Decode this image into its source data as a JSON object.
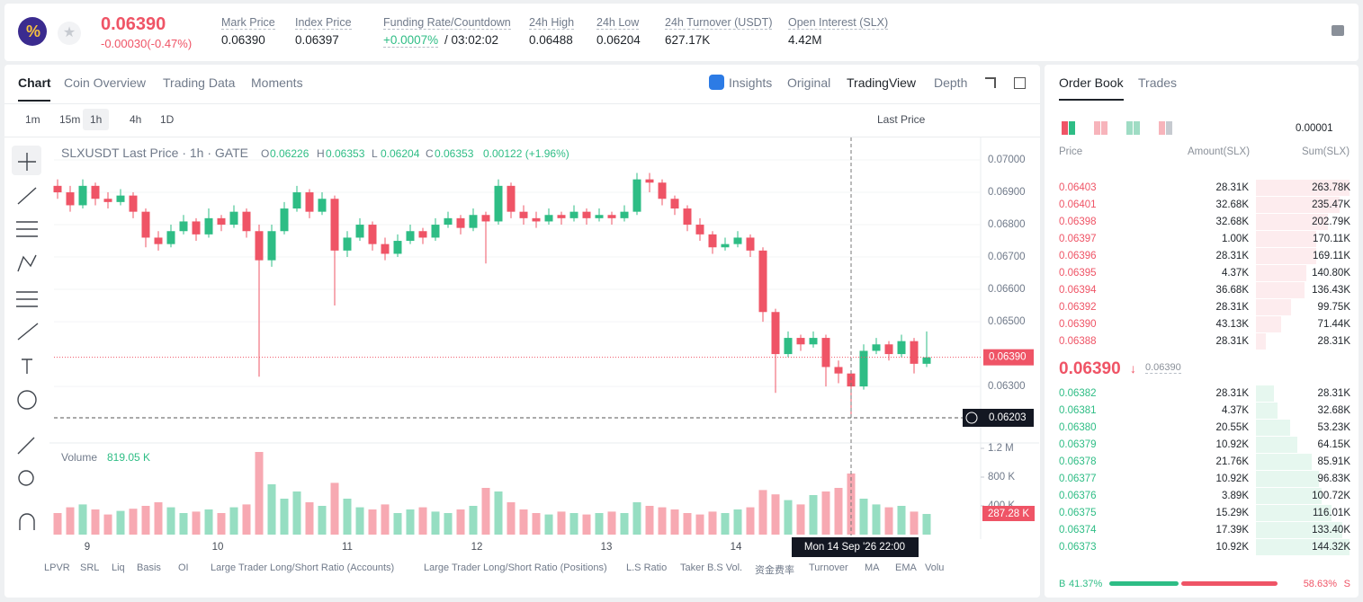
{
  "header": {
    "price": "0.06390",
    "change": "-0.00030(-0.47%)",
    "stats": [
      {
        "label": "Mark Price",
        "value": "0.06390"
      },
      {
        "label": "Index Price",
        "value": "0.06397"
      },
      {
        "label": "Funding Rate/Countdown",
        "value": "+0.0007%",
        "extra": "/ 03:02:02"
      },
      {
        "label": "24h High",
        "value": "0.06488"
      },
      {
        "label": "24h Low",
        "value": "0.06204"
      },
      {
        "label": "24h Turnover (USDT)",
        "value": "627.17K"
      },
      {
        "label": "Open Interest (SLX)",
        "value": "4.42M"
      }
    ]
  },
  "tabs": [
    "Chart",
    "Coin Overview",
    "Trading Data",
    "Moments"
  ],
  "views": [
    "Insights",
    "Original",
    "TradingView",
    "Depth"
  ],
  "intervals": [
    "1m",
    "15m",
    "1h",
    "4h",
    "1D"
  ],
  "price_source": "Last Price",
  "legend": {
    "symbol": "SLXUSDT Last Price · 1h · GATE",
    "o_label": "O",
    "o": "0.06226",
    "h_label": "H",
    "h": "0.06353",
    "l_label": "L",
    "l": "0.06204",
    "c_label": "C",
    "c": "0.06353",
    "change": "0.00122 (+1.96%)",
    "volume_label": "Volume",
    "volume": "819.05 K"
  },
  "indicators": [
    "LPVR",
    "SRL",
    "Liq",
    "Basis",
    "OI",
    "Large Trader Long/Short Ratio (Accounts)",
    "Large Trader Long/Short Ratio (Positions)",
    "L.S Ratio",
    "Taker B.S Vol.",
    "资金费率",
    "Turnover",
    "MA",
    "EMA",
    "Volu"
  ],
  "chart_data": {
    "type": "candlestick",
    "up_color": "#2ebd85",
    "down_color": "#ef5466",
    "x_labels": [
      "9",
      "10",
      "11",
      "12",
      "13",
      "14"
    ],
    "crosshair": {
      "time": "Mon 14 Sep '26  22:00",
      "value": 0.06203,
      "label": "0.06203"
    },
    "last": {
      "value": 0.0639,
      "label": "0.06390"
    },
    "ylim": [
      0.06128,
      0.07064
    ],
    "yticks": [
      {
        "value": 0.07,
        "label": "0.07000"
      },
      {
        "value": 0.069,
        "label": "0.06900"
      },
      {
        "value": 0.068,
        "label": "0.06800"
      },
      {
        "value": 0.067,
        "label": "0.06700"
      },
      {
        "value": 0.066,
        "label": "0.06600"
      },
      {
        "value": 0.065,
        "label": "0.06500"
      },
      {
        "value": 0.063,
        "label": "0.06300"
      }
    ],
    "volume_lim": [
      0,
      1237500
    ],
    "volume_ticks": [
      {
        "value": 1200000,
        "label": "1.2 M"
      },
      {
        "value": 800000,
        "label": "800 K"
      },
      {
        "value": 400000,
        "label": "400 K"
      }
    ],
    "volume_last_label": "287.28 K",
    "candles": [
      [
        0.0692,
        0.0694,
        0.0688,
        0.069
      ],
      [
        0.069,
        0.0692,
        0.0684,
        0.0686
      ],
      [
        0.0686,
        0.0694,
        0.0685,
        0.0692
      ],
      [
        0.0692,
        0.0693,
        0.0686,
        0.0688
      ],
      [
        0.0688,
        0.069,
        0.0685,
        0.0687
      ],
      [
        0.0687,
        0.0691,
        0.0686,
        0.0689
      ],
      [
        0.0689,
        0.069,
        0.0682,
        0.0684
      ],
      [
        0.0684,
        0.0685,
        0.0673,
        0.0676
      ],
      [
        0.0676,
        0.0678,
        0.0672,
        0.0674
      ],
      [
        0.0674,
        0.068,
        0.0673,
        0.0678
      ],
      [
        0.0678,
        0.0683,
        0.0677,
        0.0681
      ],
      [
        0.0681,
        0.0682,
        0.0675,
        0.0677
      ],
      [
        0.0677,
        0.0685,
        0.0676,
        0.0682
      ],
      [
        0.0682,
        0.0683,
        0.0678,
        0.068
      ],
      [
        0.068,
        0.0686,
        0.0679,
        0.0684
      ],
      [
        0.0684,
        0.0685,
        0.0676,
        0.0678
      ],
      [
        0.0678,
        0.068,
        0.0633,
        0.0669
      ],
      [
        0.0669,
        0.068,
        0.0667,
        0.0678
      ],
      [
        0.0678,
        0.0687,
        0.0677,
        0.0685
      ],
      [
        0.0685,
        0.0692,
        0.0684,
        0.069
      ],
      [
        0.069,
        0.0691,
        0.0682,
        0.0684
      ],
      [
        0.0684,
        0.069,
        0.0683,
        0.0688
      ],
      [
        0.0688,
        0.0689,
        0.0655,
        0.0672
      ],
      [
        0.0672,
        0.0678,
        0.067,
        0.0676
      ],
      [
        0.0676,
        0.0682,
        0.0675,
        0.068
      ],
      [
        0.068,
        0.0681,
        0.0672,
        0.0674
      ],
      [
        0.0674,
        0.0676,
        0.0669,
        0.0671
      ],
      [
        0.0671,
        0.0677,
        0.067,
        0.0675
      ],
      [
        0.0675,
        0.068,
        0.0674,
        0.0678
      ],
      [
        0.0678,
        0.0679,
        0.0674,
        0.0676
      ],
      [
        0.0676,
        0.0682,
        0.0675,
        0.068
      ],
      [
        0.068,
        0.0684,
        0.0679,
        0.0682
      ],
      [
        0.0682,
        0.0683,
        0.0677,
        0.0679
      ],
      [
        0.0679,
        0.0685,
        0.0678,
        0.0683
      ],
      [
        0.0683,
        0.0684,
        0.0668,
        0.0681
      ],
      [
        0.0681,
        0.0694,
        0.068,
        0.0692
      ],
      [
        0.0692,
        0.0693,
        0.0682,
        0.0684
      ],
      [
        0.0684,
        0.0686,
        0.068,
        0.0682
      ],
      [
        0.0682,
        0.0684,
        0.0679,
        0.0681
      ],
      [
        0.0681,
        0.0685,
        0.068,
        0.0683
      ],
      [
        0.0683,
        0.0684,
        0.068,
        0.0682
      ],
      [
        0.0682,
        0.0686,
        0.0681,
        0.0684
      ],
      [
        0.0684,
        0.0685,
        0.068,
        0.0682
      ],
      [
        0.0682,
        0.0685,
        0.0681,
        0.0683
      ],
      [
        0.0683,
        0.0684,
        0.068,
        0.0682
      ],
      [
        0.0682,
        0.0686,
        0.0681,
        0.0684
      ],
      [
        0.0684,
        0.0696,
        0.0683,
        0.0694
      ],
      [
        0.0694,
        0.0696,
        0.069,
        0.0693
      ],
      [
        0.0693,
        0.0694,
        0.0686,
        0.0688
      ],
      [
        0.0688,
        0.0689,
        0.0683,
        0.0685
      ],
      [
        0.0685,
        0.0686,
        0.0678,
        0.068
      ],
      [
        0.068,
        0.0682,
        0.0675,
        0.0677
      ],
      [
        0.0677,
        0.0678,
        0.0671,
        0.0673
      ],
      [
        0.0673,
        0.0676,
        0.0672,
        0.0674
      ],
      [
        0.0674,
        0.0678,
        0.0673,
        0.0676
      ],
      [
        0.0676,
        0.0677,
        0.067,
        0.0672
      ],
      [
        0.0672,
        0.0673,
        0.065,
        0.0653
      ],
      [
        0.0653,
        0.0654,
        0.0628,
        0.064
      ],
      [
        0.064,
        0.0647,
        0.0639,
        0.0645
      ],
      [
        0.0645,
        0.0646,
        0.0641,
        0.0643
      ],
      [
        0.0643,
        0.0647,
        0.0642,
        0.0645
      ],
      [
        0.0645,
        0.0646,
        0.063,
        0.0636
      ],
      [
        0.0636,
        0.0638,
        0.0631,
        0.0634
      ],
      [
        0.0634,
        0.0635,
        0.06203,
        0.063
      ],
      [
        0.063,
        0.0643,
        0.0629,
        0.0641
      ],
      [
        0.0641,
        0.0645,
        0.064,
        0.0643
      ],
      [
        0.0643,
        0.0644,
        0.0638,
        0.064
      ],
      [
        0.064,
        0.0646,
        0.0639,
        0.0644
      ],
      [
        0.0644,
        0.0645,
        0.0634,
        0.0637
      ],
      [
        0.0637,
        0.0647,
        0.0636,
        0.0639
      ]
    ],
    "volumes": [
      300000,
      380000,
      420000,
      350000,
      280000,
      330000,
      360000,
      400000,
      450000,
      380000,
      300000,
      320000,
      350000,
      300000,
      380000,
      420000,
      1150000,
      700000,
      500000,
      600000,
      450000,
      400000,
      720000,
      500000,
      380000,
      350000,
      420000,
      300000,
      350000,
      380000,
      320000,
      300000,
      350000,
      400000,
      650000,
      600000,
      450000,
      350000,
      300000,
      280000,
      320000,
      300000,
      280000,
      300000,
      320000,
      300000,
      450000,
      400000,
      380000,
      350000,
      300000,
      280000,
      320000,
      300000,
      350000,
      380000,
      620000,
      560000,
      480000,
      420000,
      550000,
      600000,
      650000,
      850000,
      500000,
      420000,
      380000,
      400000,
      320000,
      287280
    ]
  },
  "order_book": {
    "tabs": [
      "Order Book",
      "Trades"
    ],
    "precision": "0.00001",
    "columns": [
      "Price",
      "Amount(SLX)",
      "Sum(SLX)"
    ],
    "asks": [
      [
        "0.06403",
        "28.31K",
        "263.78K"
      ],
      [
        "0.06401",
        "32.68K",
        "235.47K"
      ],
      [
        "0.06398",
        "32.68K",
        "202.79K"
      ],
      [
        "0.06397",
        "1.00K",
        "170.11K"
      ],
      [
        "0.06396",
        "28.31K",
        "169.11K"
      ],
      [
        "0.06395",
        "4.37K",
        "140.80K"
      ],
      [
        "0.06394",
        "36.68K",
        "136.43K"
      ],
      [
        "0.06392",
        "28.31K",
        "99.75K"
      ],
      [
        "0.06390",
        "43.13K",
        "71.44K"
      ],
      [
        "0.06388",
        "28.31K",
        "28.31K"
      ]
    ],
    "mid_price": "0.06390",
    "mid_mark": "0.06390",
    "bids": [
      [
        "0.06382",
        "28.31K",
        "28.31K"
      ],
      [
        "0.06381",
        "4.37K",
        "32.68K"
      ],
      [
        "0.06380",
        "20.55K",
        "53.23K"
      ],
      [
        "0.06379",
        "10.92K",
        "64.15K"
      ],
      [
        "0.06378",
        "21.76K",
        "85.91K"
      ],
      [
        "0.06377",
        "10.92K",
        "96.83K"
      ],
      [
        "0.06376",
        "3.89K",
        "100.72K"
      ],
      [
        "0.06375",
        "15.29K",
        "116.01K"
      ],
      [
        "0.06374",
        "17.39K",
        "133.40K"
      ],
      [
        "0.06373",
        "10.92K",
        "144.32K"
      ]
    ],
    "buy_label": "B",
    "buy": "41.37%",
    "sell": "58.63%",
    "sell_label": "S"
  }
}
